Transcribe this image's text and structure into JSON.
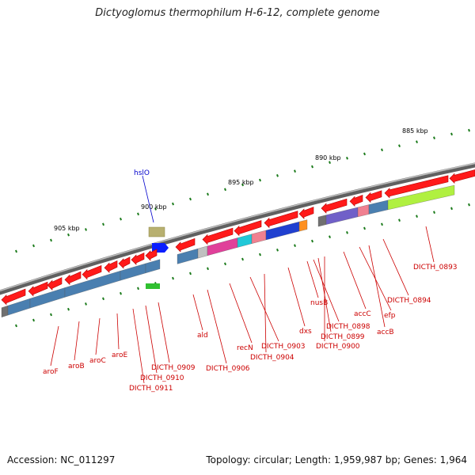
{
  "title": "Dictyoglomus thermophilum H-6-12, complete genome",
  "footer": {
    "accession": "Accession: NC_011297",
    "summary": "Topology: circular; Length: 1,959,987 bp; Genes: 1,964"
  },
  "colors": {
    "backbone": "#808080",
    "gene_arrow": "#ff1a1a",
    "gene_label": "#cc0000",
    "hslO_label": "#0000cc",
    "tick": "#1a7a1a"
  },
  "scale_labels": [
    "885 kbp",
    "890 kbp",
    "895 kbp",
    "900 kbp",
    "905 kbp"
  ],
  "genes": [
    "aroF",
    "aroB",
    "aroC",
    "aroE",
    "DICTH_0909",
    "DICTH_0910",
    "DICTH_0911",
    "ald",
    "DICTH_0906",
    "recN",
    "DICTH_0903",
    "DICTH_0904",
    "dxs",
    "nusB",
    "DICTH_0898",
    "DICTH_0899",
    "DICTH_0900",
    "accC",
    "efp",
    "accB",
    "DICTH_0894",
    "DICTH_0893",
    "hslO"
  ]
}
